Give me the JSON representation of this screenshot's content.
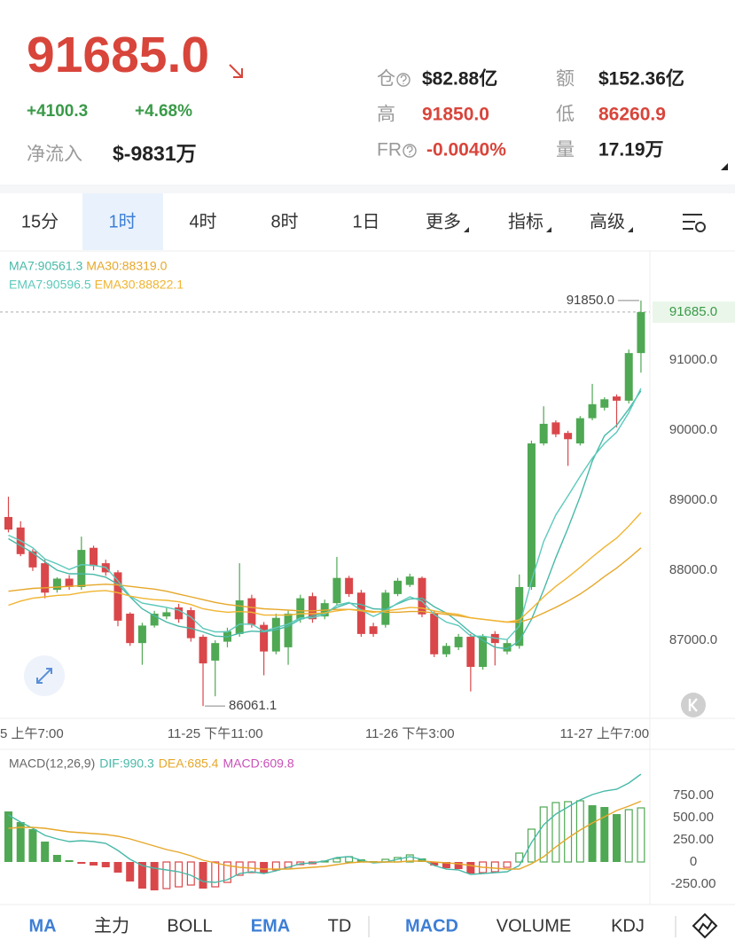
{
  "header": {
    "price": "91685.0",
    "change": "+4100.3",
    "change_pct": "+4.68%",
    "net_inflow": {
      "label": "净流入",
      "value": "$-9831万"
    },
    "stats": [
      {
        "label": "仓",
        "value": "$82.88亿",
        "help": true
      },
      {
        "label": "额",
        "value": "$152.36亿"
      },
      {
        "label": "高",
        "value": "91850.0",
        "color": "#d8453b"
      },
      {
        "label": "低",
        "value": "86260.9",
        "color": "#d8453b"
      },
      {
        "label": "FR",
        "value": "-0.0040%",
        "help": true,
        "color": "#d8453b"
      },
      {
        "label": "量",
        "value": "17.19万"
      }
    ]
  },
  "tabs": [
    {
      "label": "15分"
    },
    {
      "label": "1时",
      "selected": true
    },
    {
      "label": "4时"
    },
    {
      "label": "8时"
    },
    {
      "label": "1日"
    },
    {
      "label": "更多",
      "dropdown": true
    },
    {
      "label": "指标",
      "dropdown": true
    },
    {
      "label": "高级",
      "dropdown": true
    }
  ],
  "indicators": [
    {
      "label": "MA",
      "active": true
    },
    {
      "label": "主力"
    },
    {
      "label": "BOLL"
    },
    {
      "label": "EMA",
      "active": true
    },
    {
      "label": "TD"
    },
    {
      "label": "MACD",
      "active": true
    },
    {
      "label": "VOLUME"
    },
    {
      "label": "KDJ"
    }
  ],
  "chart_data": [
    {
      "type": "candlestick",
      "up_color": "#4fa853",
      "down_color": "#d9474a",
      "categories": [
        null,
        "5 上午7:00",
        null,
        null,
        null,
        null,
        null,
        null,
        null,
        null,
        null,
        null,
        null,
        null,
        null,
        null,
        null,
        "11-25 下午11:00",
        null,
        null,
        null,
        null,
        null,
        null,
        null,
        null,
        null,
        null,
        null,
        null,
        null,
        null,
        null,
        "11-26 下午3:00",
        null,
        null,
        null,
        null,
        null,
        null,
        null,
        null,
        null,
        null,
        null,
        null,
        null,
        null,
        null,
        "11-27 上午7:00",
        null,
        null,
        null
      ],
      "open": [
        88760,
        88610,
        88270,
        88100,
        87720,
        87880,
        87760,
        88320,
        88100,
        87970,
        87380,
        86960,
        87210,
        87340,
        87470,
        87430,
        87050,
        86710,
        86980,
        87090,
        87600,
        87220,
        86840,
        86900,
        87300,
        87630,
        87340,
        87530,
        87890,
        87680,
        87200,
        87220,
        87660,
        87790,
        87890,
        87380,
        86800,
        86900,
        87050,
        86620,
        87090,
        86840,
        86920,
        87760,
        89810,
        90110,
        89960,
        89810,
        90170,
        90320,
        90480,
        90420,
        91100
      ],
      "high": [
        89050,
        88700,
        88300,
        88150,
        87900,
        87930,
        88480,
        88350,
        88150,
        88000,
        87400,
        87250,
        87420,
        87460,
        87520,
        87470,
        87080,
        87000,
        87180,
        88100,
        87650,
        87260,
        87380,
        87420,
        87650,
        87680,
        87580,
        88190,
        87920,
        87720,
        87250,
        87720,
        87890,
        87950,
        87910,
        87420,
        86960,
        87090,
        87090,
        87090,
        87130,
        87010,
        87940,
        89850,
        90340,
        90140,
        89990,
        90200,
        90660,
        90470,
        90510,
        91150,
        91850
      ],
      "low": [
        88540,
        88200,
        87990,
        87600,
        87680,
        87720,
        87720,
        88000,
        87920,
        87200,
        86920,
        86650,
        87180,
        87300,
        87250,
        86980,
        86061.1,
        86200,
        86900,
        87050,
        87180,
        86500,
        86800,
        86650,
        87250,
        87250,
        87300,
        87500,
        87620,
        87050,
        87050,
        87180,
        87630,
        87760,
        87330,
        86760,
        86760,
        86860,
        86270,
        86580,
        86640,
        86800,
        86880,
        87720,
        89780,
        89900,
        89490,
        89780,
        90140,
        90280,
        90040,
        90380,
        90820
      ],
      "close": [
        88580,
        88230,
        88040,
        87680,
        87880,
        87760,
        88290,
        88060,
        87970,
        87280,
        86960,
        87210,
        87380,
        87400,
        87300,
        87030,
        86670,
        86960,
        87130,
        87570,
        87220,
        86840,
        87320,
        87380,
        87600,
        87300,
        87530,
        87890,
        87660,
        87090,
        87090,
        87680,
        87850,
        87910,
        87370,
        86800,
        86920,
        87050,
        86620,
        87050,
        86960,
        86960,
        87760,
        89810,
        90090,
        89940,
        89870,
        90170,
        90370,
        90440,
        90420,
        91100,
        91685
      ],
      "series": [
        {
          "name": "MA7:90561.3",
          "color": "#48b9a8",
          "values": [
            88450,
            88350,
            88250,
            88120,
            88000,
            87950,
            87950,
            87940,
            87900,
            87800,
            87620,
            87450,
            87350,
            87260,
            87200,
            87170,
            87120,
            87060,
            87050,
            87100,
            87130,
            87120,
            87150,
            87200,
            87300,
            87350,
            87390,
            87470,
            87530,
            87510,
            87450,
            87440,
            87520,
            87590,
            87600,
            87480,
            87390,
            87260,
            87110,
            87000,
            86900,
            86880,
            86990,
            87300,
            87720,
            88180,
            88600,
            89050,
            89560,
            89920,
            90070,
            90300,
            90561.3
          ]
        },
        {
          "name": "MA30:88319.0",
          "color": "#e6a72a",
          "values": [
            87700,
            87720,
            87740,
            87750,
            87760,
            87770,
            87780,
            87790,
            87800,
            87790,
            87770,
            87750,
            87730,
            87700,
            87660,
            87620,
            87580,
            87540,
            87510,
            87490,
            87470,
            87450,
            87440,
            87430,
            87420,
            87420,
            87430,
            87440,
            87440,
            87430,
            87410,
            87400,
            87400,
            87410,
            87410,
            87390,
            87370,
            87350,
            87320,
            87300,
            87280,
            87260,
            87260,
            87310,
            87390,
            87470,
            87560,
            87660,
            87780,
            87910,
            88030,
            88170,
            88319.0
          ]
        },
        {
          "name": "EMA7:90596.5",
          "color": "#5cc9bb",
          "values": [
            88500,
            88420,
            88320,
            88160,
            88090,
            88010,
            88080,
            88070,
            88040,
            87850,
            87630,
            87530,
            87500,
            87470,
            87430,
            87330,
            87170,
            87120,
            87120,
            87230,
            87230,
            87130,
            87180,
            87230,
            87320,
            87320,
            87370,
            87500,
            87540,
            87430,
            87340,
            87420,
            87530,
            87620,
            87560,
            87370,
            87260,
            87210,
            87060,
            87060,
            87030,
            87010,
            87200,
            87850,
            88410,
            88790,
            89060,
            89340,
            89600,
            89810,
            89970,
            90250,
            90596.5
          ]
        },
        {
          "name": "EMA30:88822.1",
          "color": "#f0b431",
          "values": [
            87500,
            87560,
            87600,
            87620,
            87640,
            87650,
            87680,
            87700,
            87710,
            87680,
            87630,
            87600,
            87580,
            87570,
            87550,
            87510,
            87450,
            87420,
            87400,
            87410,
            87400,
            87360,
            87360,
            87360,
            87380,
            87380,
            87390,
            87420,
            87440,
            87420,
            87400,
            87420,
            87440,
            87470,
            87460,
            87420,
            87390,
            87370,
            87320,
            87300,
            87280,
            87260,
            87290,
            87450,
            87620,
            87770,
            87900,
            88040,
            88190,
            88330,
            88460,
            88630,
            88822.1
          ]
        }
      ],
      "ylim": [
        85886,
        92532
      ],
      "yticks": [
        {
          "value": 87000,
          "label": "87000.0"
        },
        {
          "value": 88000,
          "label": "88000.0"
        },
        {
          "value": 89000,
          "label": "89000.0"
        },
        {
          "value": 90000,
          "label": "90000.0"
        },
        {
          "value": 91000,
          "label": "91000.0"
        }
      ],
      "grid": false,
      "last_price": {
        "value": 91685,
        "label": "91685.0"
      },
      "high_label": {
        "value": 91850,
        "label": "91850.0"
      },
      "low_label": {
        "value": 86061.1,
        "label": "86061.1"
      }
    },
    {
      "type": "macd",
      "title": "MACD(12,26,9)",
      "up_color": "#4fa853",
      "down_color": "#d9474a",
      "histogram": {
        "name": "MACD:609.8",
        "color": "#c94fb9",
        "values": [
          570,
          450,
          370,
          230,
          80,
          20,
          -20,
          -40,
          -60,
          -120,
          -220,
          -300,
          -320,
          -300,
          -280,
          -260,
          -300,
          -280,
          -230,
          -150,
          -120,
          -130,
          -90,
          -60,
          -30,
          -20,
          10,
          40,
          60,
          30,
          10,
          30,
          50,
          80,
          40,
          -40,
          -70,
          -80,
          -130,
          -120,
          -110,
          -60,
          100,
          370,
          620,
          670,
          680,
          690,
          640,
          620,
          540,
          590,
          609.8
        ]
      },
      "series": [
        {
          "name": "DIF:990.3",
          "color": "#48b9a8",
          "values": [
            530,
            450,
            380,
            300,
            260,
            230,
            240,
            230,
            210,
            130,
            30,
            -40,
            -70,
            -90,
            -110,
            -150,
            -220,
            -230,
            -200,
            -130,
            -110,
            -130,
            -100,
            -60,
            -20,
            -10,
            10,
            50,
            60,
            20,
            -10,
            0,
            30,
            60,
            30,
            -40,
            -80,
            -90,
            -140,
            -130,
            -120,
            -110,
            -40,
            220,
            420,
            540,
            620,
            700,
            760,
            800,
            820,
            890,
            990.3
          ]
        },
        {
          "name": "DEA:685.4",
          "color": "#e6a72a",
          "values": [
            380,
            390,
            390,
            380,
            360,
            340,
            330,
            320,
            310,
            290,
            260,
            220,
            180,
            140,
            110,
            70,
            20,
            -10,
            -40,
            -60,
            -70,
            -80,
            -80,
            -80,
            -70,
            -60,
            -50,
            -30,
            -10,
            0,
            0,
            0,
            0,
            10,
            10,
            0,
            -10,
            -20,
            -40,
            -60,
            -70,
            -80,
            -80,
            -20,
            60,
            170,
            270,
            360,
            440,
            510,
            580,
            630,
            685.4
          ]
        }
      ],
      "ylim": [
        -430,
        1220
      ],
      "yticks": [
        {
          "value": -250,
          "label": "-250.00"
        },
        0,
        {
          "value": 250,
          "label": "250.00"
        },
        {
          "value": 500,
          "label": "500.00"
        },
        {
          "value": 750,
          "label": "750.00"
        }
      ]
    }
  ]
}
